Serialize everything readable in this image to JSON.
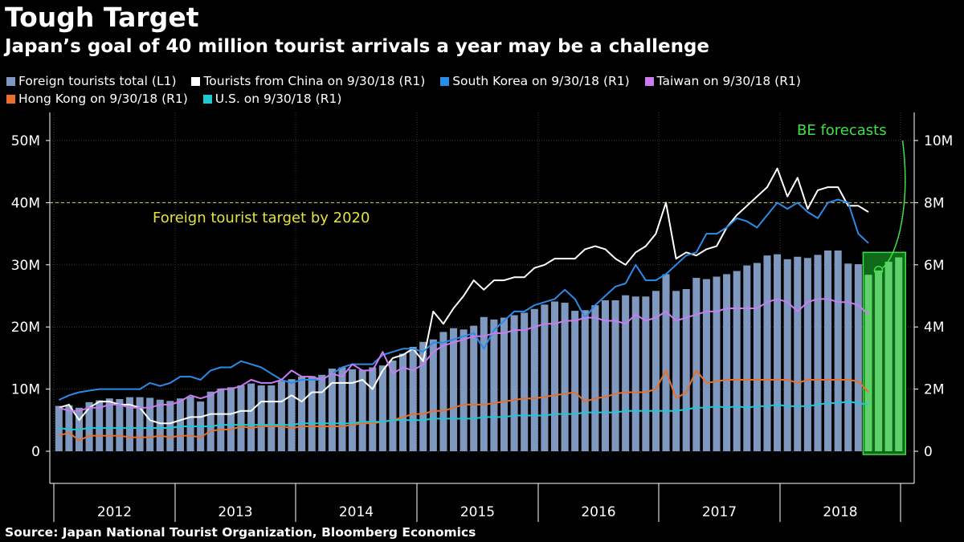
{
  "title": "Tough Target",
  "subtitle": "Japan’s goal of 40 million tourist arrivals a year may be a challenge",
  "source": "Source: Japan National Tourist Organization, Bloomberg Economics",
  "legend": [
    {
      "label": "Foreign tourists total (L1)",
      "color": "#7f98c0"
    },
    {
      "label": "Tourists from China on 9/30/18 (R1)",
      "color": "#ffffff"
    },
    {
      "label": "South Korea on 9/30/18 (R1)",
      "color": "#2b8be8"
    },
    {
      "label": "Taiwan on 9/30/18 (R1)",
      "color": "#cc7bf0"
    },
    {
      "label": "Hong Kong on 9/30/18 (R1)",
      "color": "#e8702a"
    },
    {
      "label": "U.S. on 9/30/18 (R1)",
      "color": "#1ec8d2"
    }
  ],
  "annotations": {
    "target_label": "Foreign tourist target by 2020",
    "forecast_label": "BE forecasts"
  },
  "chart_data": {
    "type": "bar",
    "x_ticks": [
      "2012",
      "2013",
      "2014",
      "2015",
      "2016",
      "2017",
      "2018"
    ],
    "left_axis": {
      "ticks": [
        "0",
        "10M",
        "20M",
        "30M",
        "40M",
        "50M"
      ],
      "ylim": [
        0,
        50000000
      ]
    },
    "right_axis": {
      "ticks": [
        "0",
        "2M",
        "4M",
        "6M",
        "8M",
        "10M"
      ],
      "ylim": [
        0,
        10000000
      ]
    },
    "target_line": 40000000,
    "x_start": "2012-01",
    "bar_series": {
      "name": "Foreign tourists total (L1)",
      "values_millions": [
        7.3,
        7.4,
        7.0,
        7.9,
        8.2,
        8.5,
        8.4,
        8.7,
        8.7,
        8.6,
        8.3,
        8.1,
        8.5,
        8.8,
        8.0,
        9.6,
        10.1,
        10.3,
        10.6,
        10.9,
        10.6,
        10.6,
        11.3,
        11.6,
        12.0,
        12.1,
        12.3,
        13.3,
        13.5,
        13.2,
        13.1,
        13.5,
        13.8,
        14.6,
        15.7,
        16.8,
        17.6,
        18.0,
        19.2,
        19.8,
        19.6,
        20.2,
        21.6,
        21.2,
        21.5,
        21.9,
        22.3,
        22.9,
        23.6,
        24.1,
        23.9,
        22.6,
        22.7,
        23.5,
        24.3,
        24.3,
        25.1,
        24.9,
        24.9,
        25.8,
        28.5,
        25.8,
        26.1,
        27.9,
        27.7,
        28.1,
        28.5,
        29.0,
        29.9,
        30.3,
        31.5,
        31.7,
        30.9,
        31.3,
        31.1,
        31.6,
        32.3,
        32.3,
        30.2,
        30.1,
        28.4
      ],
      "forecast_values_millions": [
        29.1,
        30.5,
        31.2
      ]
    },
    "line_series": [
      {
        "name": "Tourists from China on 9/30/18 (R1)",
        "color": "#ffffff",
        "values_millions": [
          1.4,
          1.5,
          1.0,
          1.4,
          1.6,
          1.6,
          1.5,
          1.5,
          1.4,
          1.0,
          0.9,
          0.9,
          1.0,
          1.1,
          1.1,
          1.2,
          1.2,
          1.2,
          1.3,
          1.3,
          1.6,
          1.6,
          1.6,
          1.8,
          1.6,
          1.9,
          1.9,
          2.2,
          2.2,
          2.2,
          2.3,
          2.0,
          2.6,
          3.0,
          3.1,
          3.3,
          2.9,
          4.5,
          4.1,
          4.6,
          5.0,
          5.5,
          5.2,
          5.5,
          5.5,
          5.6,
          5.6,
          5.9,
          6.0,
          6.2,
          6.2,
          6.2,
          6.5,
          6.6,
          6.5,
          6.2,
          6.0,
          6.4,
          6.6,
          7.0,
          8.0,
          6.2,
          6.4,
          6.3,
          6.5,
          6.6,
          7.2,
          7.6,
          7.9,
          8.2,
          8.5,
          9.1,
          8.2,
          8.8,
          7.8,
          8.4,
          8.5,
          8.5,
          7.9,
          7.9,
          7.7
        ]
      },
      {
        "name": "South Korea on 9/30/18 (R1)",
        "color": "#2b8be8",
        "values_millions": [
          1.65,
          1.8,
          1.9,
          1.95,
          2.0,
          2.0,
          2.0,
          2.0,
          2.0,
          2.2,
          2.1,
          2.2,
          2.4,
          2.4,
          2.3,
          2.6,
          2.7,
          2.7,
          2.9,
          2.8,
          2.7,
          2.5,
          2.3,
          2.2,
          2.3,
          2.3,
          2.3,
          2.5,
          2.7,
          2.8,
          2.8,
          2.8,
          3.1,
          3.2,
          3.3,
          3.3,
          3.2,
          3.5,
          3.5,
          3.6,
          3.7,
          3.8,
          3.3,
          3.9,
          4.2,
          4.5,
          4.5,
          4.7,
          4.8,
          4.9,
          5.2,
          4.9,
          4.3,
          4.7,
          5.0,
          5.3,
          5.4,
          6.0,
          5.5,
          5.5,
          5.7,
          6.0,
          6.3,
          6.4,
          7.0,
          7.0,
          7.2,
          7.5,
          7.4,
          7.2,
          7.6,
          8.0,
          7.8,
          8.0,
          7.7,
          7.5,
          8.0,
          8.1,
          8.0,
          7.0,
          6.7
        ]
      },
      {
        "name": "Taiwan on 9/30/18 (R1)",
        "color": "#cc7bf0",
        "values_millions": [
          1.4,
          1.3,
          1.3,
          1.4,
          1.4,
          1.5,
          1.5,
          1.4,
          1.4,
          1.4,
          1.5,
          1.5,
          1.6,
          1.8,
          1.7,
          1.8,
          2.0,
          2.0,
          2.1,
          2.3,
          2.2,
          2.2,
          2.3,
          2.6,
          2.4,
          2.4,
          2.3,
          2.5,
          2.4,
          2.8,
          2.6,
          2.6,
          3.2,
          2.5,
          2.7,
          2.6,
          2.8,
          3.2,
          3.4,
          3.5,
          3.6,
          3.7,
          3.7,
          3.8,
          3.8,
          3.9,
          3.9,
          4.0,
          4.1,
          4.1,
          4.2,
          4.2,
          4.3,
          4.3,
          4.2,
          4.2,
          4.1,
          4.4,
          4.2,
          4.3,
          4.5,
          4.2,
          4.3,
          4.4,
          4.5,
          4.5,
          4.6,
          4.6,
          4.6,
          4.6,
          4.8,
          4.9,
          4.8,
          4.5,
          4.8,
          4.9,
          4.9,
          4.8,
          4.8,
          4.7,
          4.4
        ]
      },
      {
        "name": "Hong Kong on 9/30/18 (R1)",
        "color": "#e8702a",
        "values_millions": [
          0.5,
          0.6,
          0.35,
          0.5,
          0.5,
          0.5,
          0.5,
          0.45,
          0.45,
          0.45,
          0.5,
          0.45,
          0.5,
          0.5,
          0.45,
          0.65,
          0.7,
          0.7,
          0.8,
          0.75,
          0.8,
          0.8,
          0.8,
          0.75,
          0.8,
          0.8,
          0.8,
          0.8,
          0.8,
          0.85,
          0.9,
          0.9,
          0.95,
          1.0,
          1.1,
          1.2,
          1.2,
          1.3,
          1.3,
          1.4,
          1.5,
          1.5,
          1.5,
          1.55,
          1.6,
          1.65,
          1.7,
          1.7,
          1.75,
          1.8,
          1.85,
          1.9,
          1.6,
          1.7,
          1.75,
          1.85,
          1.9,
          1.9,
          1.9,
          2.0,
          2.6,
          1.7,
          1.9,
          2.6,
          2.2,
          2.25,
          2.3,
          2.3,
          2.3,
          2.3,
          2.3,
          2.3,
          2.3,
          2.2,
          2.3,
          2.3,
          2.3,
          2.3,
          2.3,
          2.25,
          1.9
        ]
      },
      {
        "name": "U.S. on 9/30/18 (R1)",
        "color": "#1ec8d2",
        "values_millions": [
          0.75,
          0.7,
          0.7,
          0.75,
          0.75,
          0.75,
          0.75,
          0.75,
          0.75,
          0.75,
          0.75,
          0.75,
          0.8,
          0.8,
          0.8,
          0.8,
          0.85,
          0.85,
          0.85,
          0.85,
          0.85,
          0.85,
          0.85,
          0.85,
          0.9,
          0.9,
          0.9,
          0.9,
          0.9,
          0.9,
          0.95,
          0.95,
          0.95,
          1.0,
          1.0,
          1.0,
          1.0,
          1.05,
          1.05,
          1.05,
          1.05,
          1.05,
          1.1,
          1.1,
          1.1,
          1.15,
          1.15,
          1.15,
          1.15,
          1.2,
          1.2,
          1.2,
          1.25,
          1.25,
          1.25,
          1.25,
          1.3,
          1.3,
          1.3,
          1.3,
          1.3,
          1.3,
          1.35,
          1.4,
          1.4,
          1.45,
          1.4,
          1.45,
          1.4,
          1.45,
          1.45,
          1.5,
          1.45,
          1.45,
          1.45,
          1.5,
          1.55,
          1.55,
          1.6,
          1.55,
          1.5
        ]
      }
    ],
    "forecast_arrow_tip_millions": 50
  }
}
